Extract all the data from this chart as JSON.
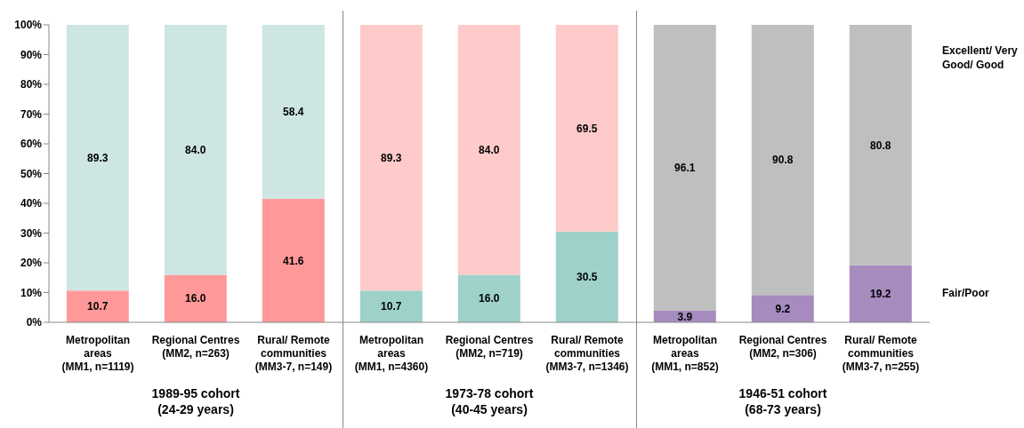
{
  "chart_data": {
    "type": "bar",
    "stacked": true,
    "categories": [
      "Metropolitan\nareas\n(MM1, n=1119)",
      "Regional Centres\n(MM2, n=263)",
      "Rural/ Remote\ncommunities\n(MM3-7, n=149)",
      "Metropolitan\nareas\n(MM1, n=4360)",
      "Regional Centres\n(MM2, n=719)",
      "Rural/ Remote\ncommunities\n(MM3-7, n=1346)",
      "Metropolitan\nareas\n(MM1, n=852)",
      "Regional Centres\n(MM2, n=306)",
      "Rural/ Remote\ncommunities\n(MM3-7, n=255)"
    ],
    "series": [
      {
        "name": "Fair/Poor",
        "colors": [
          "#ff9999",
          "#ff9999",
          "#ff9999",
          "#9dd1c9",
          "#9dd1c9",
          "#9dd1c9",
          "#a68bbf",
          "#a68bbf",
          "#a68bbf"
        ],
        "values": [
          10.7,
          16.0,
          41.6,
          10.7,
          16.0,
          30.5,
          3.9,
          9.2,
          19.2
        ],
        "value_labels": [
          "10.7",
          "16.0",
          "41.6",
          "10.7",
          "16.0",
          "30.5",
          "3.9",
          "9.2",
          "19.2"
        ]
      },
      {
        "name": "Excellent/ Very\nGood/ Good",
        "colors": [
          "#cde6e1",
          "#cde6e1",
          "#cde6e1",
          "#ffcaca",
          "#ffcaca",
          "#ffcaca",
          "#bfbfbf",
          "#bfbfbf",
          "#bfbfbf"
        ],
        "values": [
          89.3,
          84.0,
          58.4,
          89.3,
          84.0,
          69.5,
          96.1,
          90.8,
          80.8
        ],
        "value_labels": [
          "89.3",
          "84.0",
          "58.4",
          "89.3",
          "84.0",
          "69.5",
          "96.1",
          "90.8",
          "80.8"
        ]
      }
    ],
    "ylim": [
      0,
      100
    ],
    "yticks": [
      {
        "value": 0,
        "label": "0%"
      },
      {
        "value": 10,
        "label": "10%"
      },
      {
        "value": 20,
        "label": "20%"
      },
      {
        "value": 30,
        "label": "30%"
      },
      {
        "value": 40,
        "label": "40%"
      },
      {
        "value": 50,
        "label": "50%"
      },
      {
        "value": 60,
        "label": "60%"
      },
      {
        "value": 70,
        "label": "70%"
      },
      {
        "value": 80,
        "label": "80%"
      },
      {
        "value": 90,
        "label": "90%"
      },
      {
        "value": 100,
        "label": "100%"
      }
    ],
    "legend": "right",
    "grid": false,
    "annotations": [
      "1989-95 cohort\n(24-29 years)",
      "1973-78 cohort\n(40-45 years)",
      "1946-51 cohort\n(68-73 years)"
    ]
  }
}
